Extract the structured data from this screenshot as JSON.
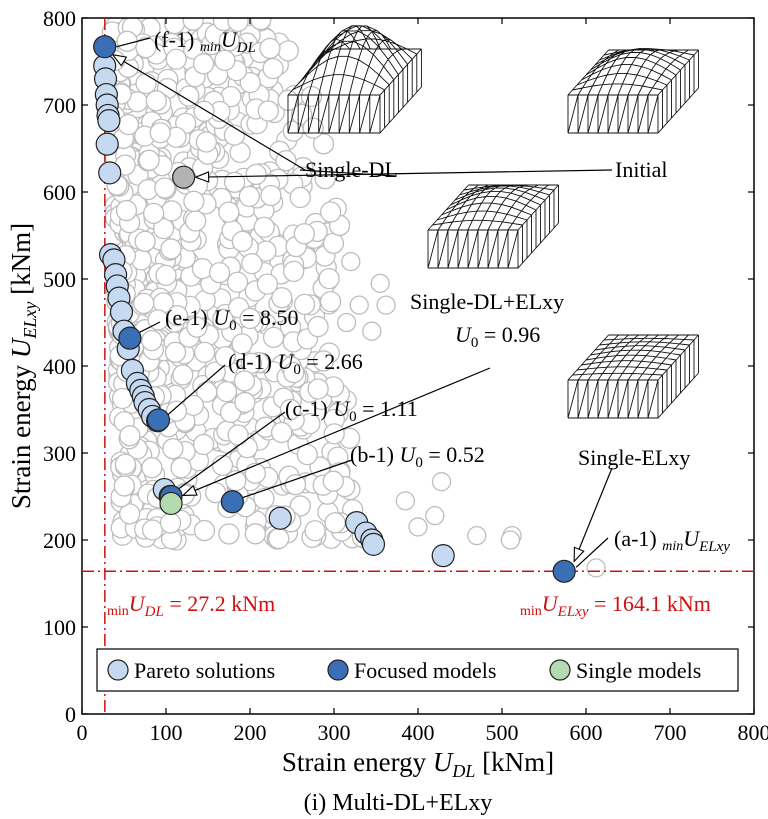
{
  "chart_data": {
    "type": "scatter",
    "caption": "(i) Multi-DL+ELxy",
    "xlabel": {
      "main": "Strain energy ",
      "var": "U",
      "sub": "DL",
      "unit": " [kNm]"
    },
    "ylabel": {
      "main": "Strain energy ",
      "var": "U",
      "sub": "ELxy",
      "unit": " [kNm]"
    },
    "xlim": [
      0,
      800
    ],
    "ylim": [
      0,
      800
    ],
    "xticks": [
      "0",
      "100",
      "200",
      "300",
      "400",
      "500",
      "600",
      "700",
      "800"
    ],
    "yticks": [
      "0",
      "100",
      "200",
      "300",
      "400",
      "500",
      "600",
      "700",
      "800"
    ],
    "colors": {
      "pareto": "#c5d9f0",
      "focused": "#3a6eb5",
      "single": "#b4dab0",
      "cloud": "#bdbdbd",
      "red": "#d01010",
      "initial": "#b3b3b3"
    },
    "min_lines": {
      "x": 27.2,
      "y": 164.1
    },
    "min_labels": {
      "x": {
        "pre": "min",
        "var": "U",
        "sub": "DL",
        "value": " = 27.2 kNm"
      },
      "y": {
        "pre": "min",
        "var": "U",
        "sub": "ELxy",
        "value": " = 164.1 kNm"
      }
    },
    "legend": {
      "placement": "bottom",
      "entries": [
        "Pareto solutions",
        "Focused models",
        "Single models"
      ]
    },
    "series": [
      {
        "name": "Pareto solutions",
        "points": [
          [
            27,
            745
          ],
          [
            28,
            730
          ],
          [
            29,
            712
          ],
          [
            30,
            700
          ],
          [
            31,
            688
          ],
          [
            32,
            682
          ],
          [
            30,
            655
          ],
          [
            33,
            622
          ],
          [
            34,
            528
          ],
          [
            38,
            522
          ],
          [
            40,
            505
          ],
          [
            42,
            492
          ],
          [
            44,
            478
          ],
          [
            47,
            462
          ],
          [
            50,
            440
          ],
          [
            55,
            420
          ],
          [
            60,
            395
          ],
          [
            66,
            380
          ],
          [
            70,
            372
          ],
          [
            73,
            365
          ],
          [
            75,
            358
          ],
          [
            80,
            350
          ],
          [
            84,
            342
          ],
          [
            90,
            337
          ],
          [
            98,
            258
          ],
          [
            105,
            250
          ],
          [
            236,
            225
          ],
          [
            327,
            220
          ],
          [
            338,
            208
          ],
          [
            345,
            200
          ],
          [
            347,
            195
          ],
          [
            430,
            182
          ]
        ]
      },
      {
        "name": "Focused models",
        "points": [
          [
            27,
            767
          ],
          [
            57,
            432
          ],
          [
            91,
            338
          ],
          [
            106,
            250
          ],
          [
            179,
            244
          ],
          [
            574,
            164
          ]
        ]
      },
      {
        "name": "Single models",
        "points": [
          [
            106,
            242
          ],
          [
            121,
            617
          ]
        ]
      }
    ],
    "annotations": [
      {
        "id": "f",
        "label": "(f-1) ",
        "pre": "min",
        "var": "U",
        "sub": "DL"
      },
      {
        "id": "e",
        "label": "(e-1) ",
        "var": "U",
        "sub": "0",
        "value": " = 8.50"
      },
      {
        "id": "d",
        "label": "(d-1) ",
        "var": "U",
        "sub": "0",
        "value": " = 2.66"
      },
      {
        "id": "c",
        "label": "(c-1) ",
        "var": "U",
        "sub": "0",
        "value": " = 1.11"
      },
      {
        "id": "b",
        "label": "(b-1) ",
        "var": "U",
        "sub": "0",
        "value": " = 0.52"
      },
      {
        "id": "a",
        "label": "(a-1) ",
        "pre": "min",
        "var": "U",
        "sub": "ELxy"
      }
    ],
    "model_labels": {
      "single_dl": "Single-DL",
      "initial": "Initial",
      "single_dl_elxy": "Single-DL+ELxy",
      "single_dl_elxy_u0": {
        "var": "U",
        "sub": "0",
        "value": " = 0.96"
      },
      "single_elxy": "Single-ELxy"
    }
  }
}
